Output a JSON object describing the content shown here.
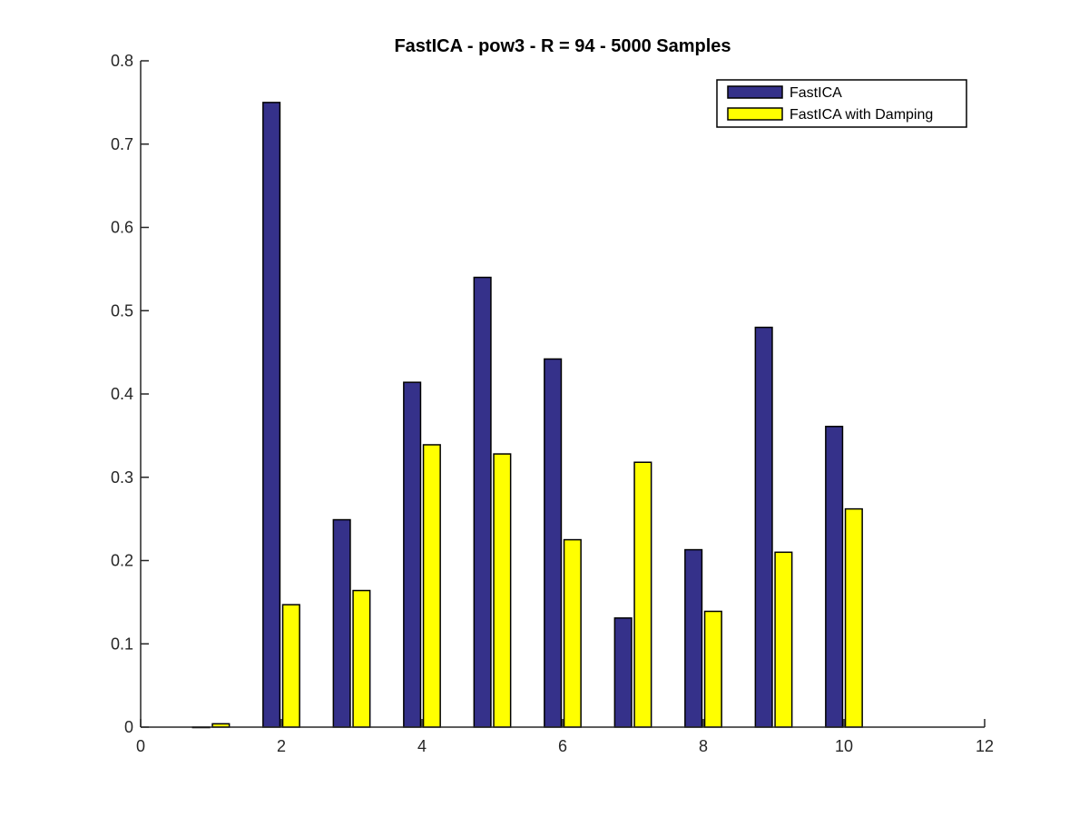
{
  "chart_data": {
    "type": "bar",
    "title": "FastICA - pow3 - R = 94 - 5000 Samples",
    "xlabel": "",
    "ylabel": "",
    "x": [
      1,
      2,
      3,
      4,
      5,
      6,
      7,
      8,
      9,
      10
    ],
    "xlim": [
      0,
      12
    ],
    "ylim": [
      0,
      0.8
    ],
    "xticks": [
      "0",
      "2",
      "4",
      "6",
      "8",
      "10",
      "12"
    ],
    "yticks": [
      "0",
      "0.1",
      "0.2",
      "0.3",
      "0.4",
      "0.5",
      "0.6",
      "0.7",
      "0.8"
    ],
    "grid": false,
    "legend_position": "top-right",
    "series": [
      {
        "name": "FastICA",
        "color": "#35318A",
        "values": [
          0.0,
          0.75,
          0.249,
          0.414,
          0.54,
          0.442,
          0.131,
          0.213,
          0.48,
          0.361
        ]
      },
      {
        "name": "FastICA with Damping",
        "color": "#FFFF00",
        "values": [
          0.004,
          0.147,
          0.164,
          0.339,
          0.328,
          0.225,
          0.318,
          0.139,
          0.21,
          0.262
        ]
      }
    ]
  }
}
